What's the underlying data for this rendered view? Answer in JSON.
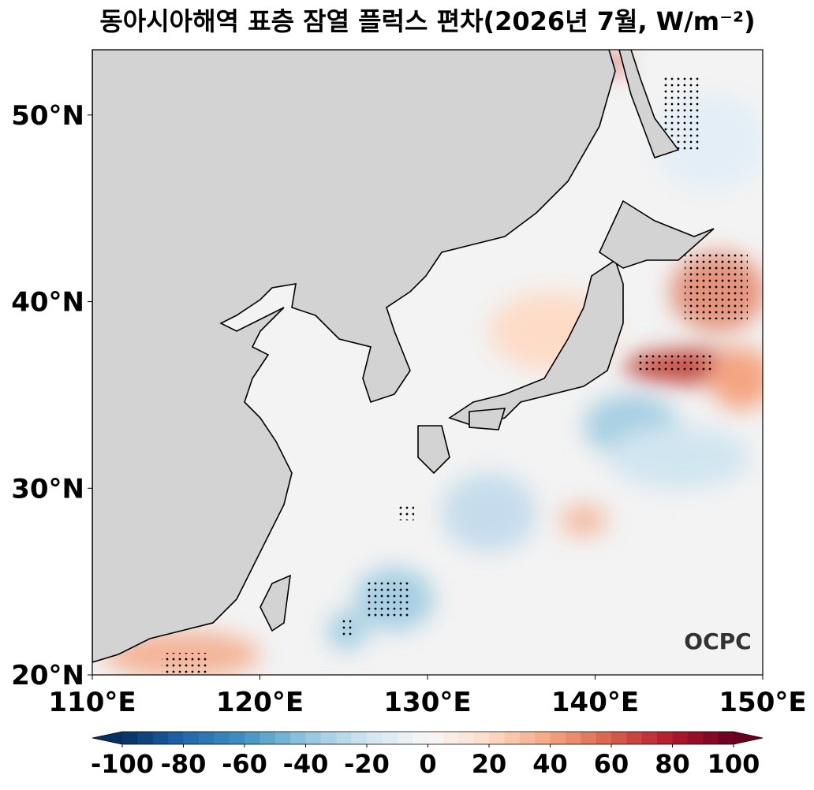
{
  "map": {
    "title": "동아시아해역 표층 잠열 플럭스 편차(2026년 7월, W/m⁻²)",
    "xlim": [
      110,
      150
    ],
    "ylim": [
      20,
      53.5
    ],
    "xticks": [
      {
        "value": 110,
        "label": "110°E"
      },
      {
        "value": 120,
        "label": "120°E"
      },
      {
        "value": 130,
        "label": "130°E"
      },
      {
        "value": 140,
        "label": "140°E"
      },
      {
        "value": 150,
        "label": "150°E"
      }
    ],
    "yticks": [
      {
        "value": 20,
        "label": "20°N"
      },
      {
        "value": 30,
        "label": "30°N"
      },
      {
        "value": 40,
        "label": "40°N"
      },
      {
        "value": 50,
        "label": "50°N"
      }
    ],
    "colorbar": {
      "lim": [
        -100,
        100
      ],
      "ticks": [
        -100,
        -80,
        -60,
        -40,
        -20,
        0,
        20,
        40,
        60,
        80,
        100
      ],
      "colors": [
        "#053061",
        "#2166ac",
        "#4393c3",
        "#92c5de",
        "#d1e5f0",
        "#f7f7f7",
        "#fddbc7",
        "#f4a582",
        "#d6604d",
        "#b2182b",
        "#67001f"
      ]
    },
    "logo": "OCPC"
  }
}
